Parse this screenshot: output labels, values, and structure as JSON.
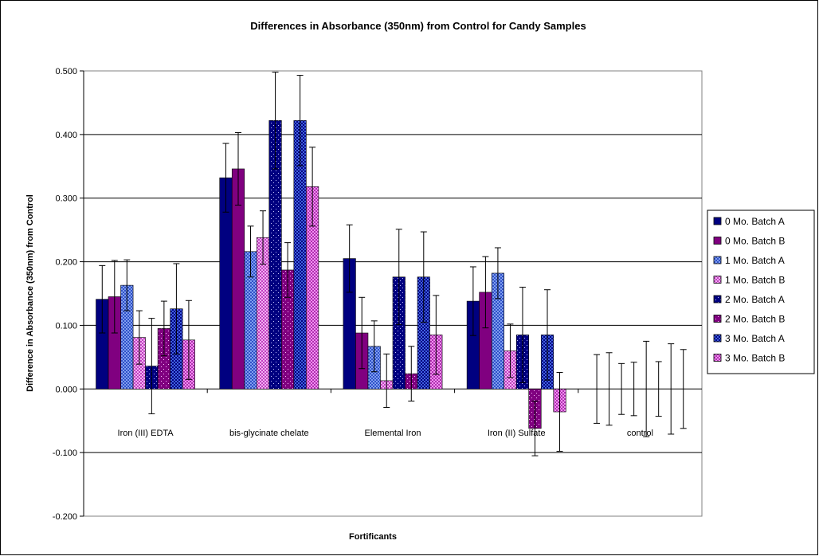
{
  "colors": {
    "navy": "#000080",
    "purple": "#800080",
    "blue_light": "#7f9fef",
    "pink_light": "#e07ee0",
    "grid": "#000000",
    "plot_bg": "#ffffff"
  },
  "chart_data": {
    "type": "bar",
    "title": "Differences in Absorbance (350nm) from Control for Candy Samples",
    "xlabel": "Fortificants",
    "ylabel": "Difference in Absorbance (350nm) from Control",
    "ylim": [
      -0.2,
      0.5
    ],
    "yticks": [
      "0.500",
      "0.400",
      "0.300",
      "0.200",
      "0.100",
      "0.000",
      "-0.100",
      "-0.200"
    ],
    "grid": true,
    "legend_position": "right",
    "categories": [
      "Iron (III) EDTA",
      "bis-glycinate chelate",
      "Elemental Iron",
      "Iron (II) Sulfate",
      "control"
    ],
    "series": [
      {
        "name": "0 Mo. Batch A",
        "pattern": "solid",
        "color": "#000080",
        "values": [
          0.141,
          0.332,
          0.205,
          0.138,
          0.0
        ],
        "errors": [
          0.053,
          0.054,
          0.053,
          0.054,
          0.054
        ]
      },
      {
        "name": "0 Mo. Batch B",
        "pattern": "solid",
        "color": "#800080",
        "values": [
          0.145,
          0.346,
          0.088,
          0.152,
          0.0
        ],
        "errors": [
          0.057,
          0.057,
          0.056,
          0.056,
          0.057
        ]
      },
      {
        "name": "1 Mo.  Batch A",
        "pattern": "check",
        "color": "#7f9fef",
        "values": [
          0.163,
          0.216,
          0.067,
          0.182,
          0.0
        ],
        "errors": [
          0.04,
          0.04,
          0.04,
          0.04,
          0.04
        ]
      },
      {
        "name": "1 Mo. Batch B",
        "pattern": "check",
        "color": "#e07ee0",
        "values": [
          0.081,
          0.238,
          0.013,
          0.06,
          0.0
        ],
        "errors": [
          0.042,
          0.042,
          0.042,
          0.042,
          0.042
        ]
      },
      {
        "name": "2 Mo. Batch A",
        "pattern": "dots",
        "color": "#000080",
        "values": [
          0.036,
          0.422,
          0.176,
          0.085,
          0.0
        ],
        "errors": [
          0.075,
          0.076,
          0.075,
          0.075,
          0.075
        ]
      },
      {
        "name": "2 Mo. Batch B",
        "pattern": "dots",
        "color": "#800080",
        "values": [
          0.095,
          0.187,
          0.024,
          -0.062,
          0.0
        ],
        "errors": [
          0.043,
          0.043,
          0.043,
          0.043,
          0.043
        ]
      },
      {
        "name": "3 Mo. Batch A",
        "pattern": "check",
        "color": "#000080",
        "values": [
          0.126,
          0.422,
          0.176,
          0.085,
          0.0
        ],
        "errors": [
          0.071,
          0.071,
          0.071,
          0.071,
          0.071
        ]
      },
      {
        "name": "3 Mo. Batch B",
        "pattern": "check",
        "color": "#800080",
        "values": [
          0.077,
          0.318,
          0.085,
          -0.036,
          0.0
        ],
        "errors": [
          0.062,
          0.062,
          0.062,
          0.062,
          0.062
        ]
      }
    ]
  }
}
